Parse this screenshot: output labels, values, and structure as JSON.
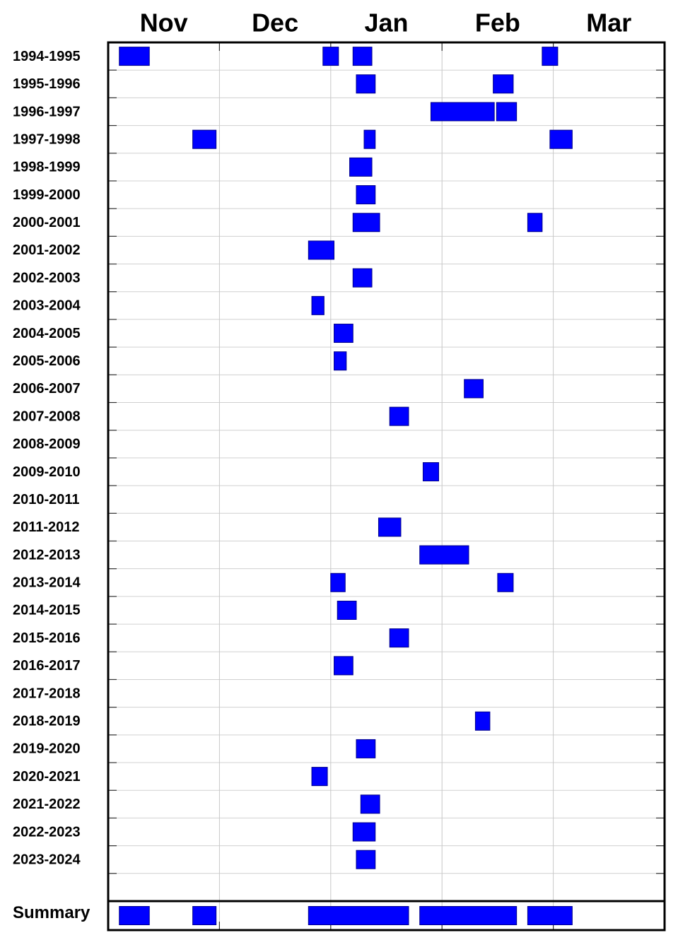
{
  "chart_data": {
    "type": "timeline",
    "color": "#0000ff",
    "month_labels": [
      "Nov",
      "Dec",
      "Jan",
      "Feb",
      "Mar"
    ],
    "xlim": [
      0,
      5
    ],
    "xticks": [
      1,
      2,
      3,
      4
    ],
    "grid": true,
    "rows": [
      {
        "label": "1994-1995",
        "intervals": [
          [
            0.1,
            0.37
          ],
          [
            1.93,
            2.07
          ],
          [
            2.2,
            2.37
          ],
          [
            3.9,
            4.04
          ]
        ]
      },
      {
        "label": "1995-1996",
        "intervals": [
          [
            2.23,
            2.4
          ],
          [
            3.46,
            3.64
          ]
        ]
      },
      {
        "label": "1996-1997",
        "intervals": [
          [
            2.9,
            3.47
          ],
          [
            3.49,
            3.67
          ]
        ]
      },
      {
        "label": "1997-1998",
        "intervals": [
          [
            0.76,
            0.97
          ],
          [
            2.3,
            2.4
          ],
          [
            3.97,
            4.17
          ]
        ]
      },
      {
        "label": "1998-1999",
        "intervals": [
          [
            2.17,
            2.37
          ]
        ]
      },
      {
        "label": "1999-2000",
        "intervals": [
          [
            2.23,
            2.4
          ]
        ]
      },
      {
        "label": "2000-2001",
        "intervals": [
          [
            2.2,
            2.44
          ],
          [
            3.77,
            3.9
          ]
        ]
      },
      {
        "label": "2001-2002",
        "intervals": [
          [
            1.8,
            2.03
          ]
        ]
      },
      {
        "label": "2002-2003",
        "intervals": [
          [
            2.2,
            2.37
          ]
        ]
      },
      {
        "label": "2003-2004",
        "intervals": [
          [
            1.83,
            1.94
          ]
        ]
      },
      {
        "label": "2004-2005",
        "intervals": [
          [
            2.03,
            2.2
          ]
        ]
      },
      {
        "label": "2005-2006",
        "intervals": [
          [
            2.03,
            2.14
          ]
        ]
      },
      {
        "label": "2006-2007",
        "intervals": [
          [
            3.2,
            3.37
          ]
        ]
      },
      {
        "label": "2007-2008",
        "intervals": [
          [
            2.53,
            2.7
          ]
        ]
      },
      {
        "label": "2008-2009",
        "intervals": []
      },
      {
        "label": "2009-2010",
        "intervals": [
          [
            2.83,
            2.97
          ]
        ]
      },
      {
        "label": "2010-2011",
        "intervals": []
      },
      {
        "label": "2011-2012",
        "intervals": [
          [
            2.43,
            2.63
          ]
        ]
      },
      {
        "label": "2012-2013",
        "intervals": [
          [
            2.8,
            3.24
          ]
        ]
      },
      {
        "label": "2013-2014",
        "intervals": [
          [
            2.0,
            2.13
          ],
          [
            3.5,
            3.64
          ]
        ]
      },
      {
        "label": "2014-2015",
        "intervals": [
          [
            2.06,
            2.23
          ]
        ]
      },
      {
        "label": "2015-2016",
        "intervals": [
          [
            2.53,
            2.7
          ]
        ]
      },
      {
        "label": "2016-2017",
        "intervals": [
          [
            2.03,
            2.2
          ]
        ]
      },
      {
        "label": "2017-2018",
        "intervals": []
      },
      {
        "label": "2018-2019",
        "intervals": [
          [
            3.3,
            3.43
          ]
        ]
      },
      {
        "label": "2019-2020",
        "intervals": [
          [
            2.23,
            2.4
          ]
        ]
      },
      {
        "label": "2020-2021",
        "intervals": [
          [
            1.83,
            1.97
          ]
        ]
      },
      {
        "label": "2021-2022",
        "intervals": [
          [
            2.27,
            2.44
          ]
        ]
      },
      {
        "label": "2022-2023",
        "intervals": [
          [
            2.2,
            2.4
          ]
        ]
      },
      {
        "label": "2023-2024",
        "intervals": [
          [
            2.23,
            2.4
          ]
        ]
      }
    ],
    "summary": {
      "label": "Summary",
      "intervals": [
        [
          0.1,
          0.37
        ],
        [
          0.76,
          0.97
        ],
        [
          1.8,
          2.7
        ],
        [
          2.8,
          3.67
        ],
        [
          3.77,
          4.17
        ]
      ]
    }
  }
}
